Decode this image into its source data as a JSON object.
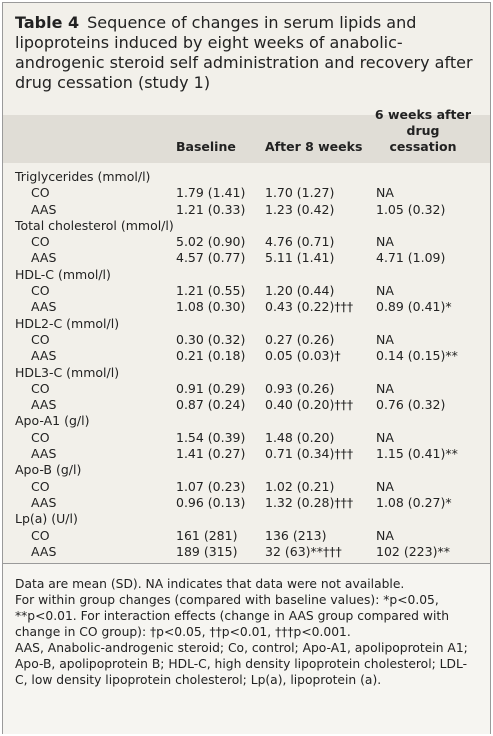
{
  "title": {
    "label": "Table 4",
    "text": "Sequence of changes in serum lipids and lipoproteins induced by eight weeks of anabolic-androgenic steroid self administration and recovery after drug cessation (study 1)"
  },
  "columns": [
    "Baseline",
    "After 8 weeks",
    "6 weeks after drug cessation"
  ],
  "groups": [
    {
      "name": "Triglycerides (mmol/l)",
      "rows": [
        {
          "label": "CO",
          "cells": [
            "1.79 (1.41)",
            "1.70 (1.27)",
            "NA"
          ]
        },
        {
          "label": "AAS",
          "cells": [
            "1.21 (0.33)",
            "1.23 (0.42)",
            "1.05 (0.32)"
          ]
        }
      ]
    },
    {
      "name": "Total cholesterol (mmol/l)",
      "rows": [
        {
          "label": "CO",
          "cells": [
            "5.02 (0.90)",
            "4.76 (0.71)",
            "NA"
          ]
        },
        {
          "label": "AAS",
          "cells": [
            "4.57 (0.77)",
            "5.11 (1.41)",
            "4.71 (1.09)"
          ]
        }
      ]
    },
    {
      "name": "HDL-C (mmol/l)",
      "rows": [
        {
          "label": "CO",
          "cells": [
            "1.21 (0.55)",
            "1.20 (0.44)",
            "NA"
          ]
        },
        {
          "label": "AAS",
          "cells": [
            "1.08 (0.30)",
            "0.43 (0.22)†††",
            "0.89 (0.41)*"
          ]
        }
      ]
    },
    {
      "name": "HDL2-C (mmol/l)",
      "rows": [
        {
          "label": "CO",
          "cells": [
            "0.30 (0.32)",
            "0.27 (0.26)",
            "NA"
          ]
        },
        {
          "label": "AAS",
          "cells": [
            "0.21 (0.18)",
            "0.05 (0.03)†",
            "0.14 (0.15)**"
          ]
        }
      ]
    },
    {
      "name": "HDL3-C (mmol/l)",
      "rows": [
        {
          "label": "CO",
          "cells": [
            "0.91 (0.29)",
            "0.93 (0.26)",
            "NA"
          ]
        },
        {
          "label": "AAS",
          "cells": [
            "0.87 (0.24)",
            "0.40 (0.20)†††",
            "0.76 (0.32)"
          ]
        }
      ]
    },
    {
      "name": "Apo-A1 (g/l)",
      "rows": [
        {
          "label": "CO",
          "cells": [
            "1.54 (0.39)",
            "1.48 (0.20)",
            "NA"
          ]
        },
        {
          "label": "AAS",
          "cells": [
            "1.41 (0.27)",
            "0.71 (0.34)†††",
            "1.15 (0.41)**"
          ]
        }
      ]
    },
    {
      "name": "Apo-B (g/l)",
      "rows": [
        {
          "label": "CO",
          "cells": [
            "1.07 (0.23)",
            "1.02 (0.21)",
            "NA"
          ]
        },
        {
          "label": "AAS",
          "cells": [
            "0.96 (0.13)",
            "1.32 (0.28)†††",
            "1.08 (0.27)*"
          ]
        }
      ]
    },
    {
      "name": "Lp(a) (U/l)",
      "rows": [
        {
          "label": "CO",
          "cells": [
            "161 (281)",
            "136 (213)",
            "NA"
          ]
        },
        {
          "label": "AAS",
          "cells": [
            "189 (315)",
            "32 (63)**†††",
            "102 (223)**"
          ]
        }
      ]
    }
  ],
  "footnotes": [
    "Data are mean (SD). NA indicates that data were not available.",
    "For within group changes (compared with baseline values): *p<0.05, **p<0.01. For interaction effects (change in AAS group compared with change in CO group): †p<0.05, ††p<0.01, †††p<0.001.",
    "AAS, Anabolic-androgenic steroid; Co, control; Apo-A1, apolipoprotein A1; Apo-B, apolipoprotein B; HDL-C, high density lipoprotein cholesterol; LDL-C, low density lipoprotein cholesterol; Lp(a), lipoprotein (a)."
  ]
}
